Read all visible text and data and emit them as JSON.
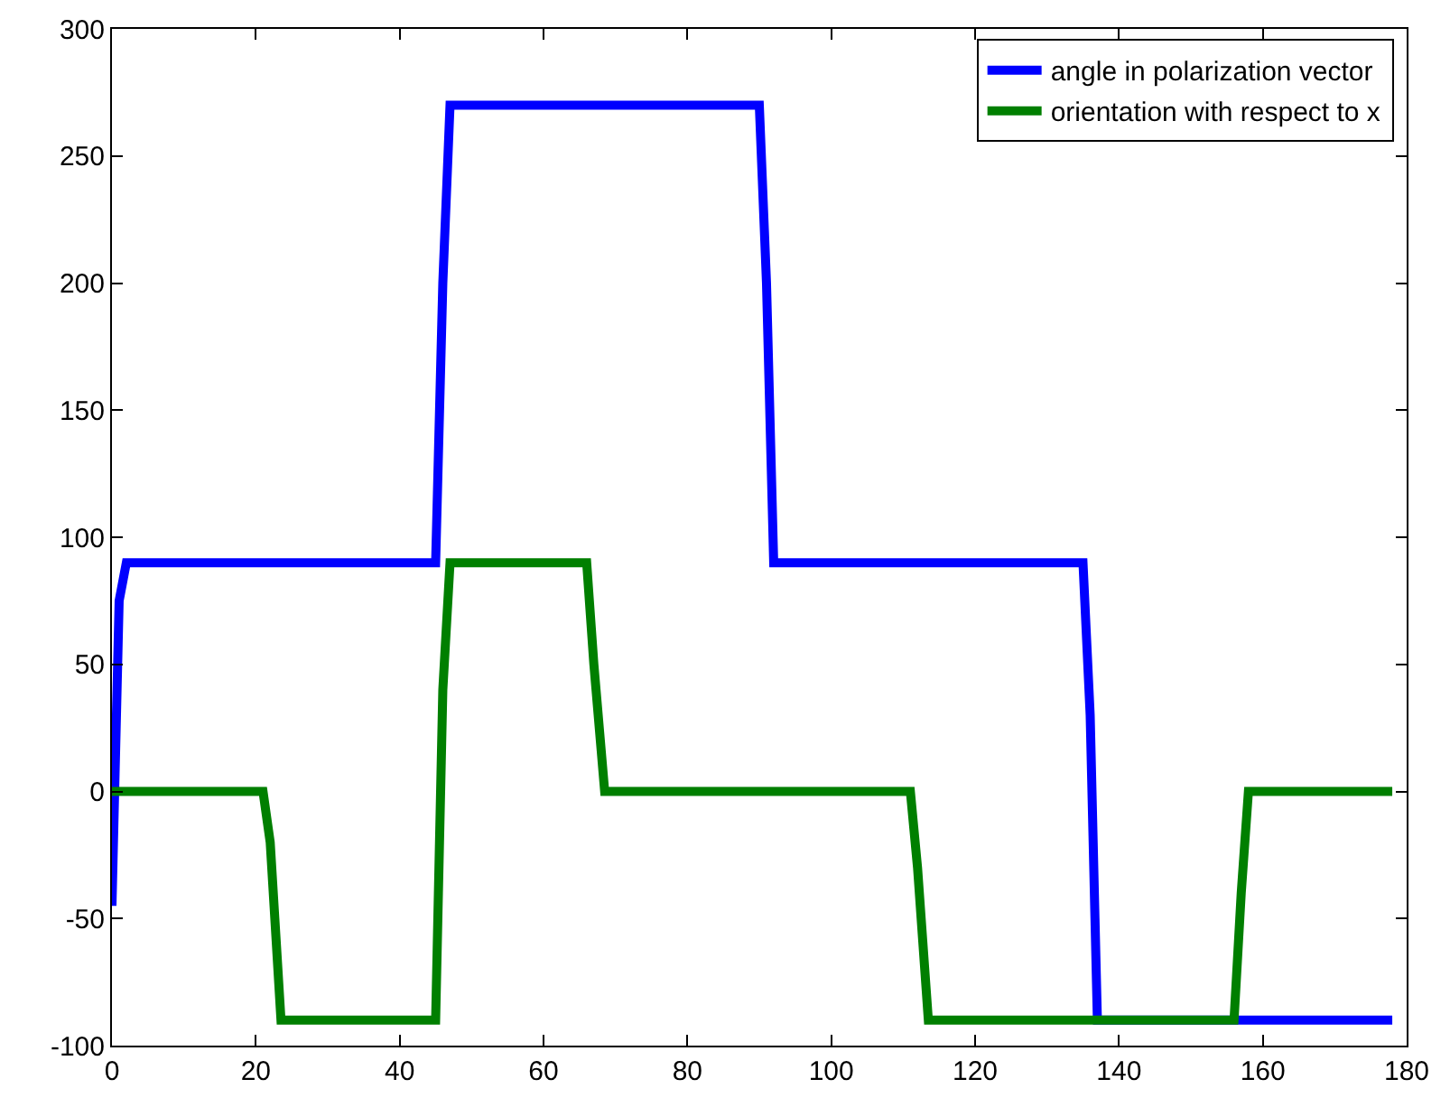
{
  "chart_data": {
    "type": "line",
    "xlim": [
      0,
      180
    ],
    "ylim": [
      -100,
      300
    ],
    "xticks": [
      0,
      20,
      40,
      60,
      80,
      100,
      120,
      140,
      160,
      180
    ],
    "yticks": [
      -100,
      -50,
      0,
      50,
      100,
      150,
      200,
      250,
      300
    ],
    "grid": false,
    "legend": "top right",
    "marker": "none",
    "line_style": "solid",
    "series": [
      {
        "name": "angle in polarization vector",
        "color": "#0000ff",
        "x": [
          0,
          1,
          2,
          45,
          46,
          47,
          90,
          91,
          92,
          135,
          136,
          137,
          178
        ],
        "values": [
          -45,
          75,
          90,
          90,
          200,
          270,
          270,
          200,
          90,
          90,
          30,
          -90,
          -90
        ]
      },
      {
        "name": "orientation with respect to x",
        "color": "#007f00",
        "x": [
          0,
          21,
          22,
          23.5,
          45,
          46,
          47,
          66,
          67,
          68.5,
          111,
          112,
          113.5,
          156,
          157,
          158,
          178
        ],
        "values": [
          0,
          0,
          -20,
          -90,
          -90,
          40,
          90,
          90,
          50,
          0,
          0,
          -30,
          -90,
          -90,
          -40,
          0,
          0
        ]
      }
    ]
  }
}
